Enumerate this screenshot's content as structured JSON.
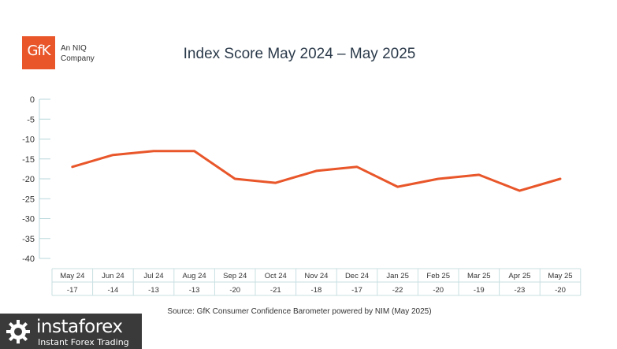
{
  "header": {
    "logo_text": "GfK",
    "company_line1": "An NIQ",
    "company_line2": "Company"
  },
  "chart_data": {
    "type": "line",
    "title": "Index Score May 2024 – May 2025",
    "categories": [
      "May 24",
      "Jun 24",
      "Jul 24",
      "Aug 24",
      "Sep 24",
      "Oct 24",
      "Nov 24",
      "Dec 24",
      "Jan 25",
      "Feb 25",
      "Mar 25",
      "Apr 25",
      "May 25"
    ],
    "series": [
      {
        "values": [
          -17,
          -14,
          -13,
          -13,
          -20,
          -21,
          -18,
          -17,
          -22,
          -20,
          -19,
          -23,
          -20
        ]
      }
    ],
    "value_labels": [
      "-17",
      "-14",
      "-13",
      "-13",
      "-20",
      "-21",
      "-18",
      "-17",
      "-22",
      "-20",
      "-19",
      "-23",
      "-20"
    ],
    "ylim": [
      -40,
      0
    ],
    "yticks": [
      0,
      -5,
      -10,
      -15,
      -20,
      -25,
      -30,
      -35,
      -40
    ],
    "grid": false,
    "line_color": "#e8562a"
  },
  "source": "Source: GfK Consumer Confidence Barometer powered by NIM (May 2025)",
  "watermark": {
    "name": "instaforex",
    "tagline": "Instant Forex Trading"
  }
}
